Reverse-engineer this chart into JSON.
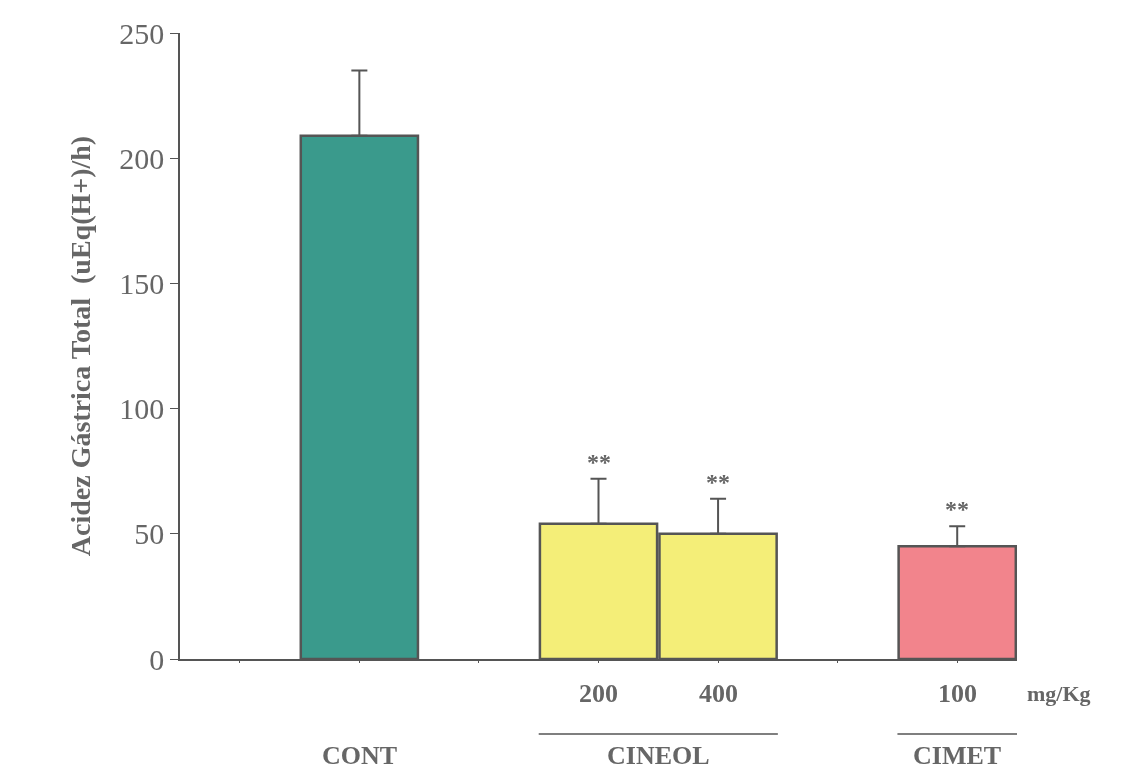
{
  "chart_data": {
    "type": "bar",
    "ylabel": "Acidez Gástrica Total  (uEq(H+)/h)",
    "categories": [
      null,
      null,
      null,
      "200",
      "400",
      null,
      "100"
    ],
    "values": [
      null,
      209,
      null,
      54,
      50,
      null,
      45
    ],
    "colors": [
      "#3a9a8c",
      "#3a9a8c",
      "#f4ee78",
      "#f4ee78",
      "#f4ee78",
      "#f2848c",
      "#f2848c"
    ],
    "errors": [
      null,
      [
        209,
        235
      ],
      null,
      [
        54,
        72
      ],
      [
        50,
        64
      ],
      null,
      [
        45,
        53
      ]
    ],
    "ylim": [
      0,
      250
    ],
    "yticks": [
      0,
      50,
      100,
      150,
      200,
      250
    ],
    "legend": false,
    "annotations": [
      "CINEOL",
      "CIMET",
      "mg/Kg",
      "CONT",
      {
        "text": "**",
        "x": "200",
        "y": 72
      },
      {
        "text": "**",
        "x": "400",
        "y": 64
      },
      {
        "text": "**",
        "x": "100",
        "y": 53
      }
    ]
  }
}
